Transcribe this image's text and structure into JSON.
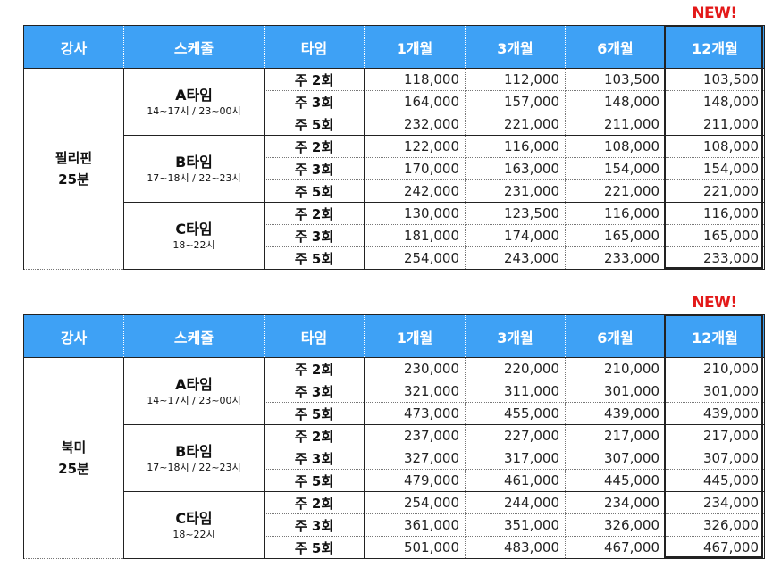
{
  "new_label": "NEW!",
  "headers": [
    "강사",
    "스케줄",
    "타임",
    "1개월",
    "3개월",
    "6개월",
    "12개월"
  ],
  "tables": [
    {
      "instructor": [
        "필리핀",
        "25분"
      ],
      "groups": [
        {
          "name": "A타임",
          "time": "14~17시 / 23~00시",
          "rows": [
            {
              "freq": "주 2회",
              "values": [
                "118,000",
                "112,000",
                "103,500",
                "103,500"
              ]
            },
            {
              "freq": "주 3회",
              "values": [
                "164,000",
                "157,000",
                "148,000",
                "148,000"
              ]
            },
            {
              "freq": "주 5회",
              "values": [
                "232,000",
                "221,000",
                "211,000",
                "211,000"
              ]
            }
          ]
        },
        {
          "name": "B타임",
          "time": "17~18시 / 22~23시",
          "rows": [
            {
              "freq": "주 2회",
              "values": [
                "122,000",
                "116,000",
                "108,000",
                "108,000"
              ]
            },
            {
              "freq": "주 3회",
              "values": [
                "170,000",
                "163,000",
                "154,000",
                "154,000"
              ]
            },
            {
              "freq": "주 5회",
              "values": [
                "242,000",
                "231,000",
                "221,000",
                "221,000"
              ]
            }
          ]
        },
        {
          "name": "C타임",
          "time": "18~22시",
          "rows": [
            {
              "freq": "주 2회",
              "values": [
                "130,000",
                "123,500",
                "116,000",
                "116,000"
              ]
            },
            {
              "freq": "주 3회",
              "values": [
                "181,000",
                "174,000",
                "165,000",
                "165,000"
              ]
            },
            {
              "freq": "주 5회",
              "values": [
                "254,000",
                "243,000",
                "233,000",
                "233,000"
              ]
            }
          ]
        }
      ]
    },
    {
      "instructor": [
        "북미",
        "25분"
      ],
      "groups": [
        {
          "name": "A타임",
          "time": "14~17시 / 23~00시",
          "rows": [
            {
              "freq": "주 2회",
              "values": [
                "230,000",
                "220,000",
                "210,000",
                "210,000"
              ]
            },
            {
              "freq": "주 3회",
              "values": [
                "321,000",
                "311,000",
                "301,000",
                "301,000"
              ]
            },
            {
              "freq": "주 5회",
              "values": [
                "473,000",
                "455,000",
                "439,000",
                "439,000"
              ]
            }
          ]
        },
        {
          "name": "B타임",
          "time": "17~18시 / 22~23시",
          "rows": [
            {
              "freq": "주 2회",
              "values": [
                "237,000",
                "227,000",
                "217,000",
                "217,000"
              ]
            },
            {
              "freq": "주 3회",
              "values": [
                "327,000",
                "317,000",
                "307,000",
                "307,000"
              ]
            },
            {
              "freq": "주 5회",
              "values": [
                "479,000",
                "461,000",
                "445,000",
                "445,000"
              ]
            }
          ]
        },
        {
          "name": "C타임",
          "time": "18~22시",
          "rows": [
            {
              "freq": "주 2회",
              "values": [
                "254,000",
                "244,000",
                "234,000",
                "234,000"
              ]
            },
            {
              "freq": "주 3회",
              "values": [
                "361,000",
                "351,000",
                "326,000",
                "326,000"
              ]
            },
            {
              "freq": "주 5회",
              "values": [
                "501,000",
                "483,000",
                "467,000",
                "467,000"
              ]
            }
          ]
        }
      ]
    }
  ]
}
